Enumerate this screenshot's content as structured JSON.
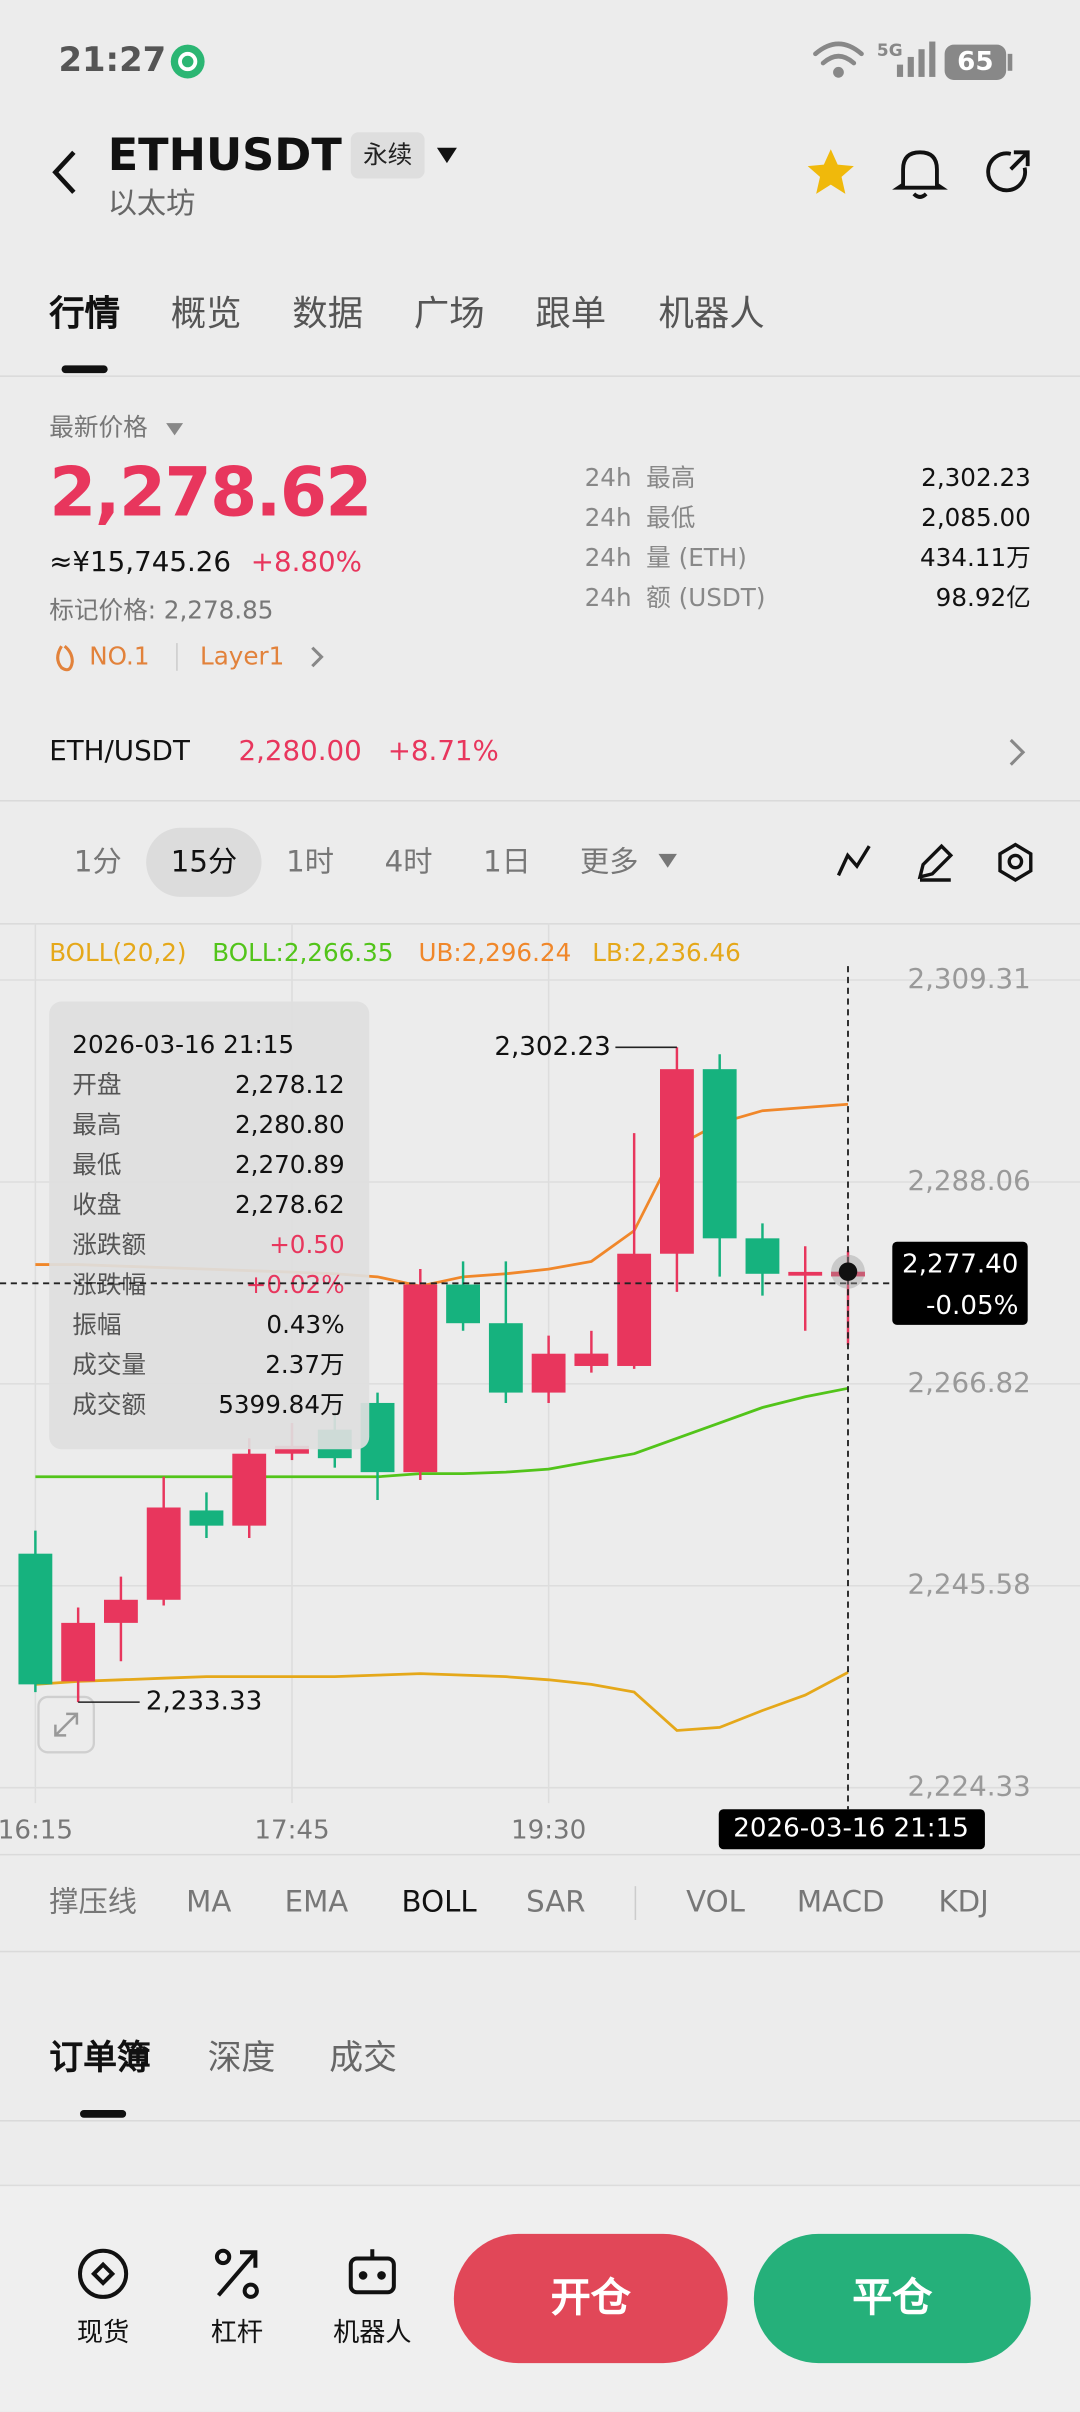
{
  "status": {
    "time": "21:27",
    "network": "5G",
    "battery": "65"
  },
  "header": {
    "symbol": "ETHUSDT",
    "badge": "永续",
    "name": "以太坊"
  },
  "tabs": {
    "items": [
      "行情",
      "概览",
      "数据",
      "广场",
      "跟单",
      "机器人"
    ],
    "active": 0
  },
  "price": {
    "label": "最新价格",
    "last": "2,278.62",
    "cny": "≈¥15,745.26",
    "change": "+8.80%",
    "mark": "标记价格: 2,278.85",
    "tags": [
      "NO.1",
      "Layer1"
    ]
  },
  "stats": [
    {
      "period": "24h",
      "label": "最高",
      "value": "2,302.23"
    },
    {
      "period": "24h",
      "label": "最低",
      "value": "2,085.00"
    },
    {
      "period": "24h",
      "label": "量 (ETH)",
      "value": "434.11万"
    },
    {
      "period": "24h",
      "label": "额 (USDT)",
      "value": "98.92亿"
    }
  ],
  "spot": {
    "pair": "ETH/USDT",
    "price": "2,280.00",
    "change": "+8.71%"
  },
  "intervals": {
    "items": [
      "1分",
      "15分",
      "1时",
      "4时",
      "1日",
      "更多"
    ],
    "active": 1
  },
  "chart_data": {
    "type": "candlestick",
    "legend_title": "BOLL(20,2)",
    "categories": [
      "16:15",
      null,
      null,
      null,
      null,
      null,
      "17:45",
      null,
      null,
      null,
      null,
      null,
      "19:30",
      null,
      null,
      null,
      null,
      null,
      null,
      null
    ],
    "open": [
      2248.95,
      2235.52,
      2241.67,
      2244.1,
      2253.5,
      2251.9,
      2259.47,
      2262.0,
      2264.81,
      2257.53,
      2277.27,
      2273.2,
      2265.9,
      2268.7,
      2268.7,
      2280.51,
      2299.93,
      2282.13,
      2278.2,
      2278.12
    ],
    "high": [
      2251.38,
      2243.29,
      2246.53,
      2257.05,
      2255.4,
      2261.1,
      2262.7,
      2263.5,
      2265.9,
      2278.9,
      2279.7,
      2279.7,
      2271.9,
      2272.4,
      2293.2,
      2302.23,
      2301.5,
      2283.7,
      2281.3,
      2280.8
    ],
    "low": [
      2234.39,
      2233.33,
      2237.63,
      2243.5,
      2250.6,
      2250.6,
      2258.8,
      2258.0,
      2254.6,
      2256.7,
      2272.4,
      2264.8,
      2264.8,
      2268.0,
      2268.4,
      2276.5,
      2278.1,
      2276.1,
      2272.4,
      2270.89
    ],
    "close": [
      2235.2,
      2241.67,
      2244.1,
      2253.81,
      2251.9,
      2259.47,
      2260.3,
      2259.0,
      2257.53,
      2277.27,
      2273.2,
      2265.9,
      2269.99,
      2270.0,
      2280.51,
      2299.93,
      2282.13,
      2278.4,
      2278.6,
      2278.62
    ],
    "up_color": "#e8365d",
    "down_color": "#16b27e",
    "series": [
      {
        "name": "BOLL:2,266.35",
        "color": "#52c41a",
        "values": [
          2257.04,
          2257.04,
          2257.04,
          2257.04,
          2257.04,
          2257.04,
          2257.04,
          2257.04,
          2257.04,
          2257.37,
          2257.37,
          2257.53,
          2257.85,
          2258.66,
          2259.47,
          2261.09,
          2262.71,
          2264.33,
          2265.46,
          2266.35
        ]
      },
      {
        "name": "UB:2,296.24",
        "color": "#f0872a",
        "values": [
          2279.37,
          2279.37,
          2279.21,
          2279.05,
          2278.89,
          2278.73,
          2278.57,
          2278.4,
          2278.08,
          2277.11,
          2278.08,
          2278.4,
          2278.89,
          2279.7,
          2282.93,
          2291.83,
          2294.26,
          2295.56,
          2295.9,
          2296.24
        ]
      },
      {
        "name": "LB:2,236.46",
        "color": "#e5a81a",
        "values": [
          2235.2,
          2235.52,
          2235.68,
          2235.85,
          2236.01,
          2236.01,
          2236.01,
          2236.01,
          2236.17,
          2236.33,
          2236.17,
          2236.01,
          2235.68,
          2235.2,
          2234.39,
          2230.35,
          2230.67,
          2232.45,
          2234.07,
          2236.46
        ]
      }
    ],
    "ylim": [
      2222.71,
      2315.3
    ],
    "yticks": [
      {
        "value": 2309.31,
        "label": "2,309.31"
      },
      {
        "value": 2288.06,
        "label": "2,288.06"
      },
      {
        "value": 2266.82,
        "label": "2,266.82"
      },
      {
        "value": 2245.58,
        "label": "2,245.58"
      },
      {
        "value": 2224.33,
        "label": "2,224.33"
      }
    ],
    "grid": true,
    "annotations": {
      "max": "2,302.23",
      "min": "2,233.33"
    },
    "crosshair": {
      "value": 2277.4,
      "label": "2,277.40",
      "change": "-0.05%",
      "time": "2026-03-16 21:15"
    },
    "tooltip": {
      "title": "2026-03-16 21:15",
      "rows": [
        {
          "label": "开盘",
          "value": "2,278.12"
        },
        {
          "label": "最高",
          "value": "2,280.80"
        },
        {
          "label": "最低",
          "value": "2,270.89"
        },
        {
          "label": "收盘",
          "value": "2,278.62"
        },
        {
          "label": "涨跌额",
          "value": "+0.50"
        },
        {
          "label": "涨跌幅",
          "value": "+0.02%"
        },
        {
          "label": "振幅",
          "value": "0.43%"
        },
        {
          "label": "成交量",
          "value": "2.37万"
        },
        {
          "label": "成交额",
          "value": "5399.84万"
        }
      ]
    }
  },
  "indicators": {
    "items": [
      "撑压线",
      "MA",
      "EMA",
      "BOLL",
      "SAR",
      "VOL",
      "MACD",
      "KDJ"
    ],
    "active": 3
  },
  "book_tabs": {
    "items": [
      "订单簿",
      "深度",
      "成交"
    ],
    "active": 0
  },
  "nav": [
    "现货",
    "杠杆",
    "机器人"
  ],
  "actions": {
    "open": "开仓",
    "close": "平仓"
  }
}
